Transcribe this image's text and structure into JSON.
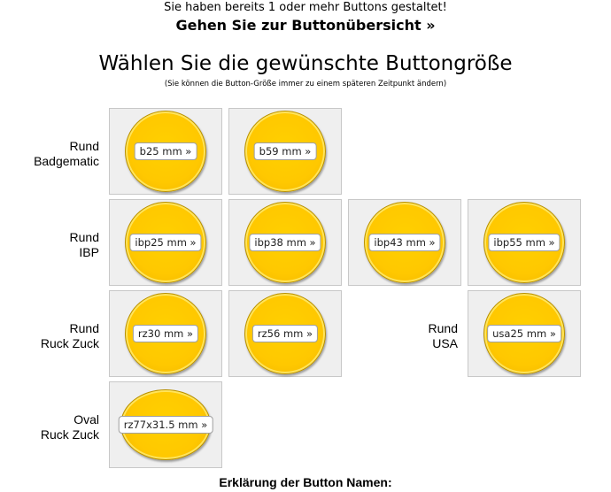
{
  "notice": {
    "text": "Sie haben bereits 1 oder mehr Buttons gestaltet!",
    "link": "Gehen Sie zur Buttonübersicht »"
  },
  "title": "Wählen Sie die gewünschte Buttongröße",
  "subtitle": "(Sie können die Button-Größe immer zu einem späteren Zeitpunkt ändern)",
  "rows": [
    {
      "label_line1": "Rund",
      "label_line2": "Badgematic",
      "sizes": [
        "b25 mm »",
        "b59 mm »"
      ]
    },
    {
      "label_line1": "Rund",
      "label_line2": "IBP",
      "sizes": [
        "ibp25 mm »",
        "ibp38 mm »",
        "ibp43 mm »",
        "ibp55 mm »"
      ]
    },
    {
      "label_line1": "Rund",
      "label_line2": "Ruck Zuck",
      "sizes": [
        "rz30 mm »",
        "rz56 mm »"
      ]
    },
    {
      "label_line1": "Oval",
      "label_line2": "Ruck Zuck",
      "sizes": [
        "rz77x31.5 mm »"
      ]
    }
  ],
  "usa": {
    "label_line1": "Rund",
    "label_line2": "USA",
    "sizes": [
      "usa25 mm »"
    ]
  },
  "footer": {
    "title": "Erklärung der Button Namen:"
  },
  "colors": {
    "badge": "#ffc800",
    "cell_bg": "#efefef"
  }
}
